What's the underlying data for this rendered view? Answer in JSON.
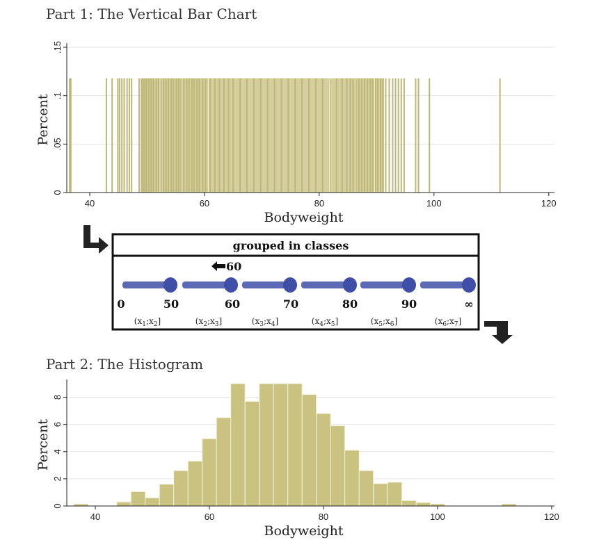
{
  "part1": {
    "title": "Part 1: The Vertical Bar Chart"
  },
  "part2": {
    "title": "Part 2: The Histogram"
  },
  "colors": {
    "bar": "#d4cf9c",
    "bar_edge": "#bdb77a",
    "hist": "#c9c281",
    "hist_edge": "#f4f0d8",
    "arrow": "#222222",
    "segment": "#3f4fa8"
  },
  "chart_data": [
    {
      "type": "bar",
      "xlabel": "Bodyweight",
      "ylabel": "Percent",
      "xlim": [
        36,
        121
      ],
      "ylim": [
        0,
        0.15
      ],
      "xticks": [
        40,
        60,
        80,
        100,
        120
      ],
      "yticks": [
        {
          "v": 0,
          "label": "0"
        },
        {
          "v": 0.05,
          "label": ".05"
        },
        {
          "v": 0.1,
          "label": ".1"
        },
        {
          "v": 0.15,
          "label": ".15"
        }
      ],
      "grid": true,
      "bar_height": 0.118,
      "bar_width": 0.25,
      "dense_range": [
        48.9,
        91.3
      ],
      "values": [
        36.5,
        36.7,
        42.9,
        43.9,
        44.9,
        45.2,
        45.6,
        46.0,
        46.5,
        46.9,
        47.3,
        48.6,
        49.0,
        49.3,
        49.6,
        49.9,
        50.3,
        50.7,
        51.1,
        51.6,
        52.0,
        52.4,
        52.9,
        53.3,
        53.7,
        54.2,
        54.6,
        55.1,
        55.5,
        55.9,
        56.4,
        56.9,
        57.3,
        57.8,
        58.2,
        58.7,
        59.1,
        59.7,
        60.2,
        61.0,
        61.8,
        62.6,
        63.4,
        64.2,
        65.0,
        66.2,
        67.4,
        68.6,
        69.8,
        71.0,
        72.2,
        73.4,
        74.6,
        75.8,
        77.0,
        78.2,
        79.4,
        80.6,
        81.8,
        83.0,
        84.0,
        84.8,
        85.4,
        85.9,
        86.4,
        86.9,
        87.4,
        87.9,
        88.4,
        88.9,
        89.3,
        89.8,
        90.2,
        90.7,
        91.1,
        91.6,
        92.2,
        92.8,
        93.3,
        93.8,
        94.3,
        94.8,
        96.8,
        97.3,
        99.2,
        111.5
      ]
    },
    {
      "type": "bar",
      "xlabel": "Bodyweight",
      "ylabel": "Percent",
      "xlim": [
        35,
        120.5
      ],
      "ylim": [
        0,
        9
      ],
      "xticks": [
        40,
        60,
        80,
        100,
        120
      ],
      "yticks": [
        {
          "v": 0,
          "label": "0"
        },
        {
          "v": 2,
          "label": "2"
        },
        {
          "v": 4,
          "label": "4"
        },
        {
          "v": 6,
          "label": "6"
        },
        {
          "v": 8,
          "label": "8"
        }
      ],
      "grid": true,
      "bin_width": 2.5,
      "bin_start": 36.25,
      "values": [
        0.15,
        0,
        0,
        0.3,
        1.05,
        0.6,
        1.6,
        2.6,
        3.3,
        4.95,
        6.5,
        9.0,
        7.7,
        9.0,
        9.0,
        9.0,
        8.2,
        6.8,
        5.9,
        4.1,
        2.6,
        1.65,
        1.75,
        0.4,
        0.25,
        0.15,
        0,
        0,
        0,
        0,
        0.15
      ]
    }
  ],
  "class_box": {
    "header": "grouped in classes",
    "arrow_label": "60",
    "boundaries": [
      "0",
      "50",
      "60",
      "70",
      "80",
      "90",
      "∞"
    ],
    "classes": [
      {
        "a": "x",
        "as": "1",
        "b": "x",
        "bs": "2"
      },
      {
        "a": "x",
        "as": "2",
        "b": "x",
        "bs": "3"
      },
      {
        "a": "x",
        "as": "3",
        "b": "x",
        "bs": "4"
      },
      {
        "a": "x",
        "as": "4",
        "b": "x",
        "bs": "5"
      },
      {
        "a": "x",
        "as": "5",
        "b": "x",
        "bs": "6"
      },
      {
        "a": "x",
        "as": "6",
        "b": "x",
        "bs": "7"
      }
    ]
  }
}
